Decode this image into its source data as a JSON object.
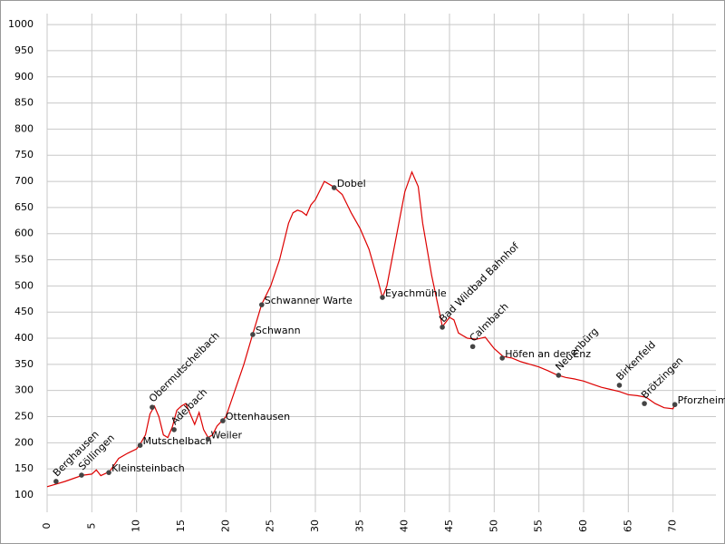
{
  "chart_data": {
    "type": "line",
    "x": [
      0,
      1,
      2,
      3,
      4,
      5,
      5.5,
      6,
      7,
      8,
      9,
      10,
      10.5,
      11,
      11.5,
      12,
      12.5,
      13,
      13.5,
      14,
      14.5,
      15,
      15.5,
      16,
      16.5,
      17,
      17.5,
      18,
      18.5,
      19,
      20,
      21,
      22,
      23,
      24,
      25,
      26,
      27,
      27.5,
      28,
      28.5,
      29,
      29.5,
      30,
      31,
      32,
      33,
      34,
      35,
      36,
      37,
      37.5,
      38,
      39,
      40,
      40.8,
      41.5,
      42,
      43,
      44,
      44.2,
      45,
      45.5,
      46,
      47,
      48,
      49,
      50,
      51,
      52,
      53,
      54,
      55,
      56,
      57,
      58,
      59,
      60,
      61,
      62,
      63,
      64,
      65,
      66,
      67,
      68,
      69,
      70,
      70.2
    ],
    "values": [
      116,
      121,
      126,
      132,
      138,
      140,
      148,
      137,
      145,
      170,
      180,
      188,
      200,
      215,
      255,
      270,
      250,
      215,
      210,
      230,
      262,
      270,
      275,
      255,
      235,
      258,
      225,
      210,
      215,
      232,
      250,
      300,
      350,
      408,
      465,
      500,
      550,
      620,
      640,
      645,
      642,
      635,
      655,
      665,
      700,
      690,
      675,
      640,
      610,
      570,
      510,
      478,
      500,
      590,
      680,
      718,
      690,
      620,
      520,
      440,
      422,
      440,
      435,
      410,
      400,
      398,
      402,
      380,
      365,
      362,
      355,
      350,
      345,
      338,
      330,
      325,
      322,
      318,
      312,
      306,
      302,
      298,
      292,
      290,
      287,
      275,
      267,
      265,
      273
    ],
    "color": "#dd0000",
    "xlim": [
      0,
      74.8
    ],
    "ylim": [
      67,
      1021
    ],
    "xticks": [
      0,
      5,
      10,
      15,
      20,
      25,
      30,
      35,
      40,
      45,
      50,
      55,
      60,
      65,
      70
    ],
    "yticks": [
      100,
      150,
      200,
      250,
      300,
      350,
      400,
      450,
      500,
      550,
      600,
      650,
      700,
      750,
      800,
      850,
      900,
      950,
      1000
    ],
    "grid": true,
    "waypoints": [
      {
        "label": "Berghausen",
        "x": 1.0,
        "y": 126,
        "angle": -45
      },
      {
        "label": "Söllingen",
        "x": 3.85,
        "y": 138,
        "angle": -45
      },
      {
        "label": "Kleinsteinbach",
        "x": 6.9,
        "y": 143,
        "angle": 0
      },
      {
        "label": "Mutschelbach",
        "x": 10.4,
        "y": 195,
        "angle": 0
      },
      {
        "label": "Obermutschelbach",
        "x": 11.75,
        "y": 268,
        "angle": -45
      },
      {
        "label": "Adelbach",
        "x": 14.2,
        "y": 225,
        "angle": -45
      },
      {
        "label": "Weiler",
        "x": 18.0,
        "y": 207,
        "angle": 0
      },
      {
        "label": "Ottenhausen",
        "x": 19.65,
        "y": 242,
        "angle": 0
      },
      {
        "label": "Schwann",
        "x": 23.0,
        "y": 407,
        "angle": 0
      },
      {
        "label": "Schwanner Warte",
        "x": 24.0,
        "y": 464,
        "angle": 0
      },
      {
        "label": "Dobel",
        "x": 32.1,
        "y": 688,
        "angle": 0
      },
      {
        "label": "Eyachmühle",
        "x": 37.5,
        "y": 478,
        "angle": 0
      },
      {
        "label": "Bad Wildbad Bahnhof",
        "x": 44.2,
        "y": 421,
        "angle": -45
      },
      {
        "label": "Calmbach",
        "x": 47.6,
        "y": 384,
        "angle": -45
      },
      {
        "label": "Höfen an der Enz",
        "x": 50.9,
        "y": 362,
        "angle": 0
      },
      {
        "label": "Neuenbürg",
        "x": 57.2,
        "y": 329,
        "angle": -45
      },
      {
        "label": "Birkenfeld",
        "x": 64.0,
        "y": 310,
        "angle": -45
      },
      {
        "label": "Brötzingen",
        "x": 66.8,
        "y": 275,
        "angle": -45
      },
      {
        "label": "Pforzheim",
        "x": 70.2,
        "y": 273,
        "angle": 0
      }
    ]
  }
}
